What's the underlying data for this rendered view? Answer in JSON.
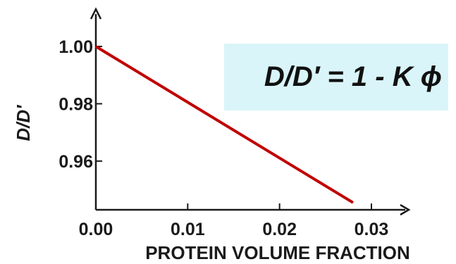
{
  "chart_data": {
    "type": "line",
    "xlabel": "PROTEIN VOLUME FRACTION",
    "ylabel": "D/D′",
    "xlim": [
      0.0,
      0.03
    ],
    "ylim": [
      0.943,
      1.0
    ],
    "x_ticks": [
      0.0,
      0.01,
      0.02,
      0.03
    ],
    "x_tick_labels": [
      "0.00",
      "0.01",
      "0.02",
      "0.03"
    ],
    "y_ticks": [
      1.0,
      0.98,
      0.96
    ],
    "y_tick_labels": [
      "1.00",
      "0.98",
      "0.96"
    ],
    "grid": false,
    "series": [
      {
        "x": [
          0.0,
          0.028
        ],
        "y": [
          1.0,
          0.9455
        ]
      }
    ],
    "annotations": [
      {
        "text": "D/D′ = 1 - K ϕ",
        "placement": "top-right"
      }
    ],
    "colors": {
      "line": "#c00000",
      "annotation_box": "#d9f5f9",
      "axis": "#1a1a1a"
    }
  }
}
